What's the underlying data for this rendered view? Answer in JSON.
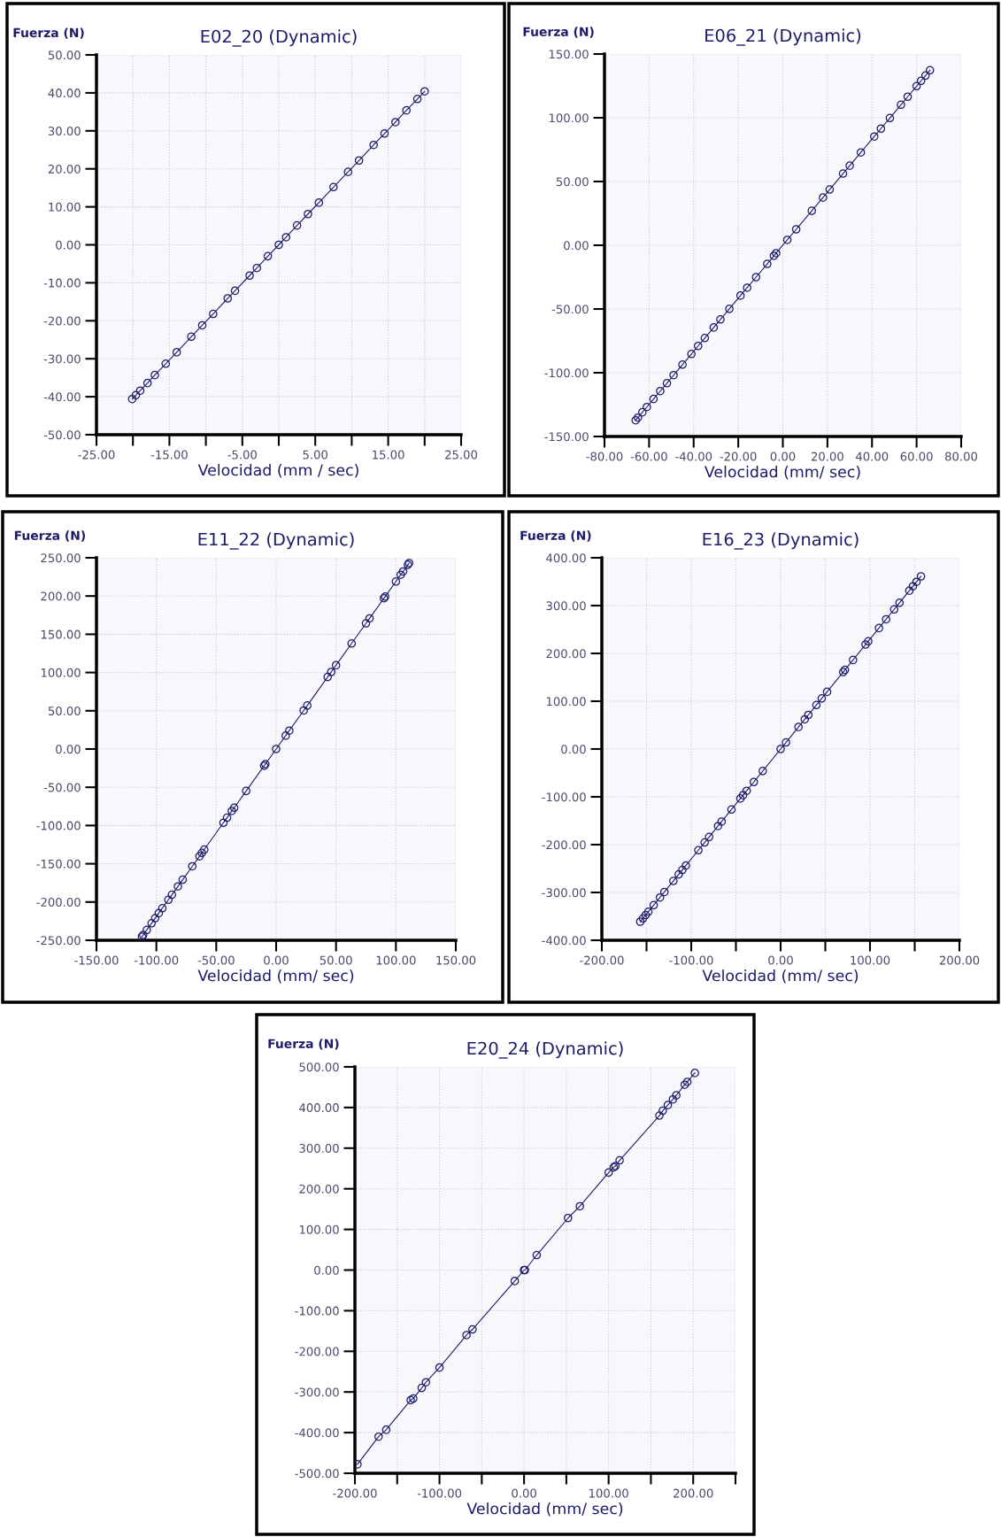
{
  "chart_data": [
    {
      "type": "line",
      "title": "E02_20 (Dynamic)",
      "xlabel": "Velocidad (mm / sec)",
      "ylabel": "Fuerza (N)",
      "marker": "circle",
      "line_style": "solid",
      "grid": true,
      "xlim": [
        -25,
        25
      ],
      "ylim": [
        -50,
        50
      ],
      "xticks": [
        {
          "value": -25,
          "label": "-25.00"
        },
        {
          "value": -20,
          "label": null
        },
        {
          "value": -15,
          "label": "-15.00"
        },
        {
          "value": -10,
          "label": null
        },
        {
          "value": -5,
          "label": "-5.00"
        },
        {
          "value": 0,
          "label": null
        },
        {
          "value": 5,
          "label": "5.00"
        },
        {
          "value": 10,
          "label": null
        },
        {
          "value": 15,
          "label": "15.00"
        },
        {
          "value": 20,
          "label": null
        },
        {
          "value": 25,
          "label": "25.00"
        }
      ],
      "yticks": [
        {
          "value": -50,
          "label": "-50.00"
        },
        {
          "value": -40,
          "label": "-40.00"
        },
        {
          "value": -30,
          "label": "-30.00"
        },
        {
          "value": -20,
          "label": "-20.00"
        },
        {
          "value": -10,
          "label": "-10.00"
        },
        {
          "value": 0,
          "label": "0.00"
        },
        {
          "value": 10,
          "label": "10.00"
        },
        {
          "value": 20,
          "label": "20.00"
        },
        {
          "value": 30,
          "label": "30.00"
        },
        {
          "value": 40,
          "label": "40.00"
        },
        {
          "value": 50,
          "label": "50.00"
        }
      ],
      "series": [
        {
          "color": "#1c1c6b",
          "x": [
            -20.1,
            -19.6,
            -19,
            -18,
            -17,
            -15.5,
            -14,
            -12,
            -10.5,
            -9,
            -7,
            -6,
            -4,
            -3,
            -1.5,
            0,
            1,
            2.5,
            4,
            5.5,
            7.5,
            9.5,
            11,
            13,
            14.5,
            16,
            17.5,
            19,
            20.0
          ],
          "values": [
            -40.6,
            -39.6,
            -38.4,
            -36.4,
            -34.3,
            -31.3,
            -28.3,
            -24.2,
            -21.2,
            -18.2,
            -14.1,
            -12.1,
            -8.1,
            -6.1,
            -3.0,
            0,
            2.0,
            5.1,
            8.1,
            11.1,
            15.2,
            19.2,
            22.2,
            26.3,
            29.3,
            32.3,
            35.4,
            38.4,
            40.4
          ]
        }
      ]
    },
    {
      "type": "line",
      "title": "E06_21 (Dynamic)",
      "xlabel": "Velocidad (mm/ sec)",
      "ylabel": "Fuerza (N)",
      "marker": "circle",
      "line_style": "solid",
      "grid": true,
      "xlim": [
        -80,
        80
      ],
      "ylim": [
        -150,
        150
      ],
      "xticks": [
        {
          "value": -80,
          "label": "-80.00"
        },
        {
          "value": -60,
          "label": "-60.00"
        },
        {
          "value": -40,
          "label": "-40.00"
        },
        {
          "value": -20,
          "label": "-20.00"
        },
        {
          "value": 0,
          "label": "0.00"
        },
        {
          "value": 20,
          "label": "20.00"
        },
        {
          "value": 40,
          "label": "40.00"
        },
        {
          "value": 60,
          "label": "60.00"
        },
        {
          "value": 80,
          "label": "80.00"
        }
      ],
      "yticks": [
        {
          "value": -150,
          "label": "-150.00"
        },
        {
          "value": -100,
          "label": "-100.00"
        },
        {
          "value": -50,
          "label": "-50.00"
        },
        {
          "value": 0,
          "label": "0.00"
        },
        {
          "value": 50,
          "label": "50.00"
        },
        {
          "value": 100,
          "label": "100.00"
        },
        {
          "value": 150,
          "label": "150.00"
        }
      ],
      "series": [
        {
          "color": "#1c1c6b",
          "x": [
            -66,
            -65,
            -63,
            -61,
            -58,
            -55,
            -52,
            -49,
            -45,
            -41,
            -38,
            -35,
            -31,
            -28,
            -24,
            -19,
            -16,
            -12,
            -7,
            -4,
            -3,
            2,
            6,
            13,
            18,
            21,
            27,
            30,
            35,
            41,
            44,
            48,
            53,
            56,
            60,
            62,
            64,
            66
          ],
          "values": [
            -137.3,
            -135.2,
            -131.0,
            -126.9,
            -120.6,
            -114.4,
            -108.2,
            -101.9,
            -93.6,
            -85.3,
            -79.0,
            -72.8,
            -64.5,
            -58.2,
            -49.9,
            -39.5,
            -33.3,
            -25.0,
            -14.6,
            -8.3,
            -6.2,
            4.2,
            12.5,
            27.0,
            37.4,
            43.7,
            56.2,
            62.4,
            72.8,
            85.3,
            91.5,
            99.8,
            110.2,
            116.5,
            124.8,
            129.0,
            133.1,
            137.3
          ]
        }
      ]
    },
    {
      "type": "line",
      "title": "E11_22 (Dynamic)",
      "xlabel": "Velocidad (mm/ sec)",
      "ylabel": "Fuerza (N)",
      "marker": "circle",
      "line_style": "solid",
      "grid": true,
      "xlim": [
        -150,
        150
      ],
      "ylim": [
        -250,
        250
      ],
      "xticks": [
        {
          "value": -150,
          "label": "-150.00"
        },
        {
          "value": -100,
          "label": "-100.00"
        },
        {
          "value": -50,
          "label": "-50.00"
        },
        {
          "value": 0,
          "label": "0.00"
        },
        {
          "value": 50,
          "label": "50.00"
        },
        {
          "value": 100,
          "label": "100.00"
        },
        {
          "value": 150,
          "label": "150.00"
        }
      ],
      "yticks": [
        {
          "value": -250,
          "label": "-250.00"
        },
        {
          "value": -200,
          "label": "-200.00"
        },
        {
          "value": -150,
          "label": "-150.00"
        },
        {
          "value": -100,
          "label": "-100.00"
        },
        {
          "value": -50,
          "label": "-50.00"
        },
        {
          "value": 0,
          "label": "0.00"
        },
        {
          "value": 50,
          "label": "50.00"
        },
        {
          "value": 100,
          "label": "100.00"
        },
        {
          "value": 150,
          "label": "150.00"
        },
        {
          "value": 200,
          "label": "200.00"
        },
        {
          "value": 250,
          "label": "250.00"
        }
      ],
      "series": [
        {
          "color": "#1c1c6b",
          "x": [
            -112,
            -111,
            -108,
            -104,
            -101,
            -98,
            -95,
            -90,
            -87,
            -82,
            -78,
            -70,
            -64,
            -62,
            -60,
            -44,
            -41,
            -37,
            -35,
            -25,
            -10,
            -9,
            0,
            8,
            11,
            23,
            26,
            43,
            46,
            50,
            63,
            75,
            78,
            90,
            91,
            100,
            104,
            106,
            110,
            111
          ],
          "values": [
            -245.3,
            -243.1,
            -236.5,
            -227.8,
            -221.2,
            -214.6,
            -208.1,
            -197.1,
            -190.5,
            -179.6,
            -170.8,
            -153.3,
            -140.2,
            -135.8,
            -131.4,
            -96.4,
            -89.8,
            -81.0,
            -76.7,
            -54.8,
            -21.9,
            -19.7,
            0,
            17.5,
            24.1,
            50.4,
            56.9,
            94.2,
            100.7,
            109.5,
            138.0,
            164.3,
            170.8,
            197.1,
            199.3,
            219.0,
            227.8,
            232.1,
            240.9,
            243.1
          ]
        }
      ]
    },
    {
      "type": "line",
      "title": "E16_23 (Dynamic)",
      "xlabel": "Velocidad (mm/ sec)",
      "ylabel": "Fuerza (N)",
      "marker": "circle",
      "line_style": "solid",
      "grid": true,
      "xlim": [
        -200,
        200
      ],
      "ylim": [
        -400,
        400
      ],
      "xticks": [
        {
          "value": -200,
          "label": "-200.00"
        },
        {
          "value": -150,
          "label": null
        },
        {
          "value": -100,
          "label": "-100.00"
        },
        {
          "value": -50,
          "label": null
        },
        {
          "value": 0,
          "label": "0.00"
        },
        {
          "value": 50,
          "label": null
        },
        {
          "value": 100,
          "label": "100.00"
        },
        {
          "value": 150,
          "label": null
        },
        {
          "value": 200,
          "label": "200.00"
        }
      ],
      "yticks": [
        {
          "value": -400,
          "label": "-400.00"
        },
        {
          "value": -300,
          "label": "-300.00"
        },
        {
          "value": -200,
          "label": "-200.00"
        },
        {
          "value": -100,
          "label": "-100.00"
        },
        {
          "value": 0,
          "label": "0.00"
        },
        {
          "value": 100,
          "label": "100.00"
        },
        {
          "value": 200,
          "label": "200.00"
        },
        {
          "value": 300,
          "label": "300.00"
        },
        {
          "value": 400,
          "label": "400.00"
        }
      ],
      "series": [
        {
          "color": "#1c1c6b",
          "x": [
            -157,
            -154,
            -151,
            -148,
            -142,
            -135,
            -130,
            -120,
            -114,
            -110,
            -106,
            -92,
            -85,
            -80,
            -70,
            -66,
            -55,
            -45,
            -42,
            -38,
            -30,
            -20,
            0,
            6,
            20,
            27,
            31,
            40,
            46,
            52,
            70,
            72,
            81,
            95,
            98,
            110,
            118,
            127,
            133,
            144,
            148,
            152,
            157
          ],
          "values": [
            -361.1,
            -354.2,
            -347.3,
            -340.4,
            -326.6,
            -310.5,
            -299.0,
            -276.0,
            -262.2,
            -253.0,
            -243.8,
            -211.6,
            -195.5,
            -184.0,
            -161.0,
            -151.8,
            -126.5,
            -103.5,
            -96.6,
            -87.4,
            -69.0,
            -46.0,
            0,
            13.8,
            46.0,
            62.1,
            71.3,
            92.0,
            105.8,
            119.6,
            161.0,
            165.6,
            186.3,
            218.5,
            225.4,
            253.0,
            271.4,
            292.1,
            305.9,
            331.2,
            340.4,
            349.6,
            361.1
          ]
        }
      ]
    },
    {
      "type": "line",
      "title": "E20_24 (Dynamic)",
      "xlabel": "Velocidad (mm/ sec)",
      "ylabel": "Fuerza (N)",
      "marker": "circle",
      "line_style": "solid",
      "grid": true,
      "xlim": [
        -200,
        250
      ],
      "ylim": [
        -500,
        500
      ],
      "xticks": [
        {
          "value": -200,
          "label": "-200.00"
        },
        {
          "value": -150,
          "label": null
        },
        {
          "value": -100,
          "label": "-100.00"
        },
        {
          "value": -50,
          "label": null
        },
        {
          "value": 0,
          "label": "0.00"
        },
        {
          "value": 50,
          "label": null
        },
        {
          "value": 100,
          "label": "100.00"
        },
        {
          "value": 150,
          "label": null
        },
        {
          "value": 200,
          "label": "200.00"
        },
        {
          "value": 250,
          "label": null
        }
      ],
      "yticks": [
        {
          "value": -500,
          "label": "-500.00"
        },
        {
          "value": -400,
          "label": "-400.00"
        },
        {
          "value": -300,
          "label": "-300.00"
        },
        {
          "value": -200,
          "label": "-200.00"
        },
        {
          "value": -100,
          "label": "-100.00"
        },
        {
          "value": 0,
          "label": "0.00"
        },
        {
          "value": 100,
          "label": "100.00"
        },
        {
          "value": 200,
          "label": "200.00"
        },
        {
          "value": 300,
          "label": "300.00"
        },
        {
          "value": 400,
          "label": "400.00"
        },
        {
          "value": 500,
          "label": "500.00"
        }
      ],
      "series": [
        {
          "color": "#1c1c6b",
          "x": [
            -197,
            -172,
            -163,
            -134,
            -131,
            -121,
            -116,
            -100,
            -68,
            -61,
            -11,
            0,
            1,
            15,
            52,
            66,
            100,
            106,
            108,
            113,
            160,
            164,
            170,
            176,
            180,
            190,
            193,
            202
          ],
          "values": [
            -478,
            -410,
            -393,
            -320,
            -316,
            -290,
            -276,
            -240,
            -160,
            -146,
            -27,
            0,
            0,
            37,
            128,
            157,
            240,
            253,
            256,
            270,
            380,
            392,
            406,
            420,
            430,
            456,
            463,
            485
          ]
        }
      ]
    }
  ]
}
